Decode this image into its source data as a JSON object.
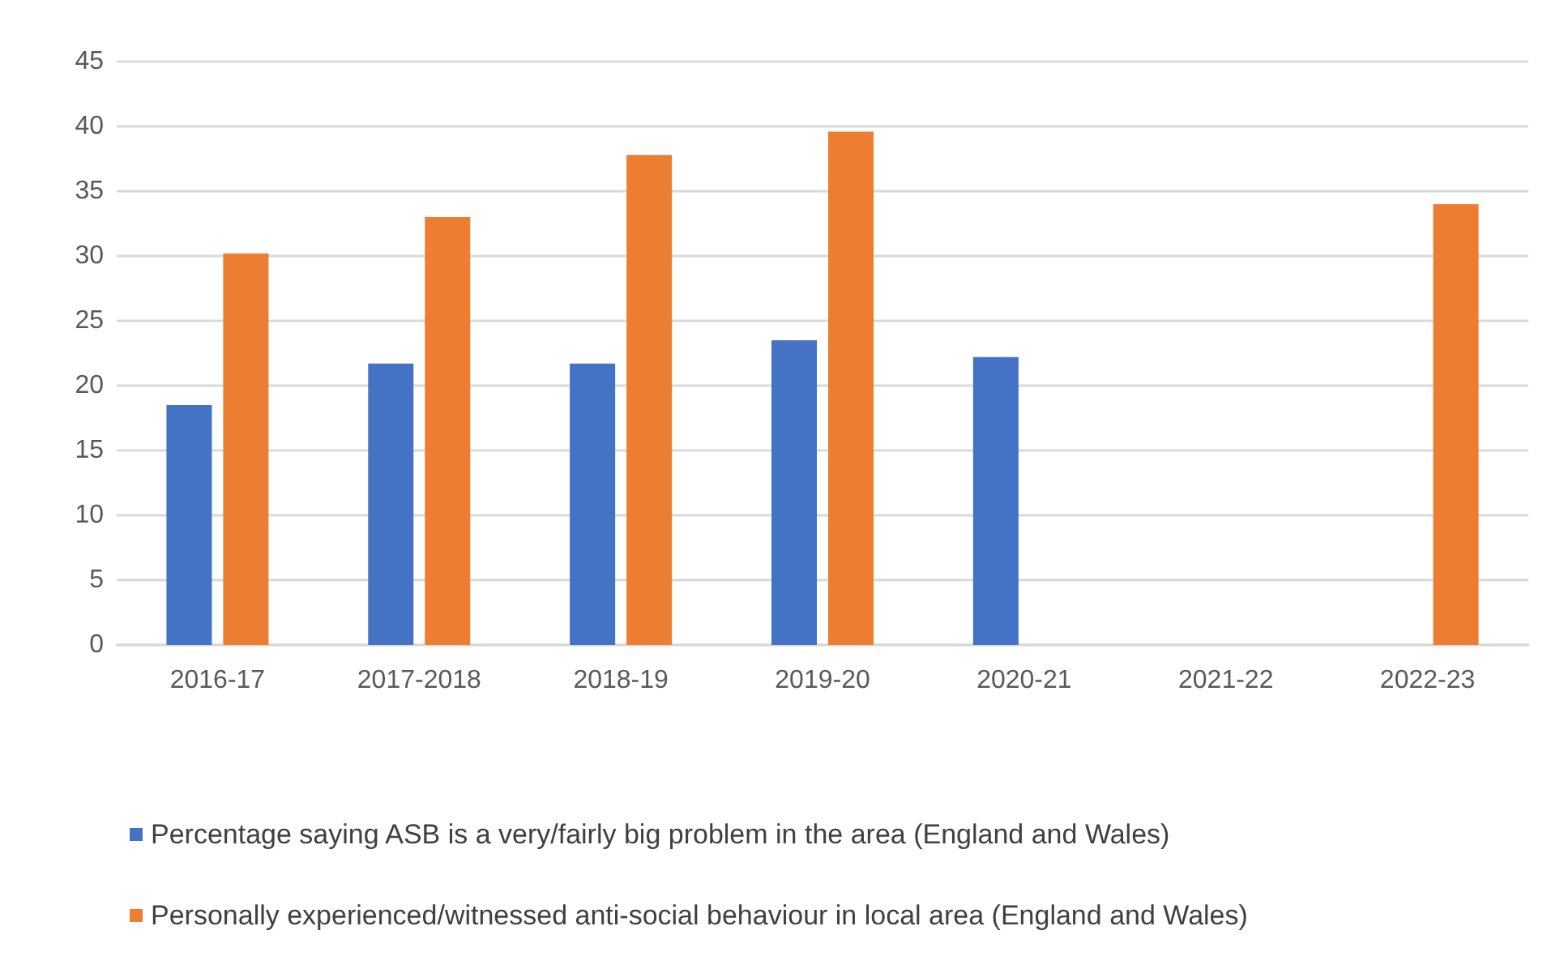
{
  "chart_data": {
    "type": "bar",
    "categories": [
      "2016-17",
      "2017-2018",
      "2018-19",
      "2019-20",
      "2020-21",
      "2021-22",
      "2022-23"
    ],
    "series": [
      {
        "name": "Percentage saying ASB is a very/fairly big problem in the area (England and Wales)",
        "color": "#4472c4",
        "values": [
          18.5,
          21.7,
          21.7,
          23.5,
          22.2,
          null,
          null
        ]
      },
      {
        "name": "Personally experienced/witnessed anti-social behaviour in local area (England and Wales)",
        "color": "#ed7d31",
        "values": [
          30.2,
          33.0,
          37.8,
          39.6,
          null,
          null,
          34.0
        ]
      }
    ],
    "ylim": [
      0,
      45
    ],
    "yticks": [
      0,
      5,
      10,
      15,
      20,
      25,
      30,
      35,
      40,
      45
    ],
    "grid": "y",
    "legend": "bottom"
  }
}
